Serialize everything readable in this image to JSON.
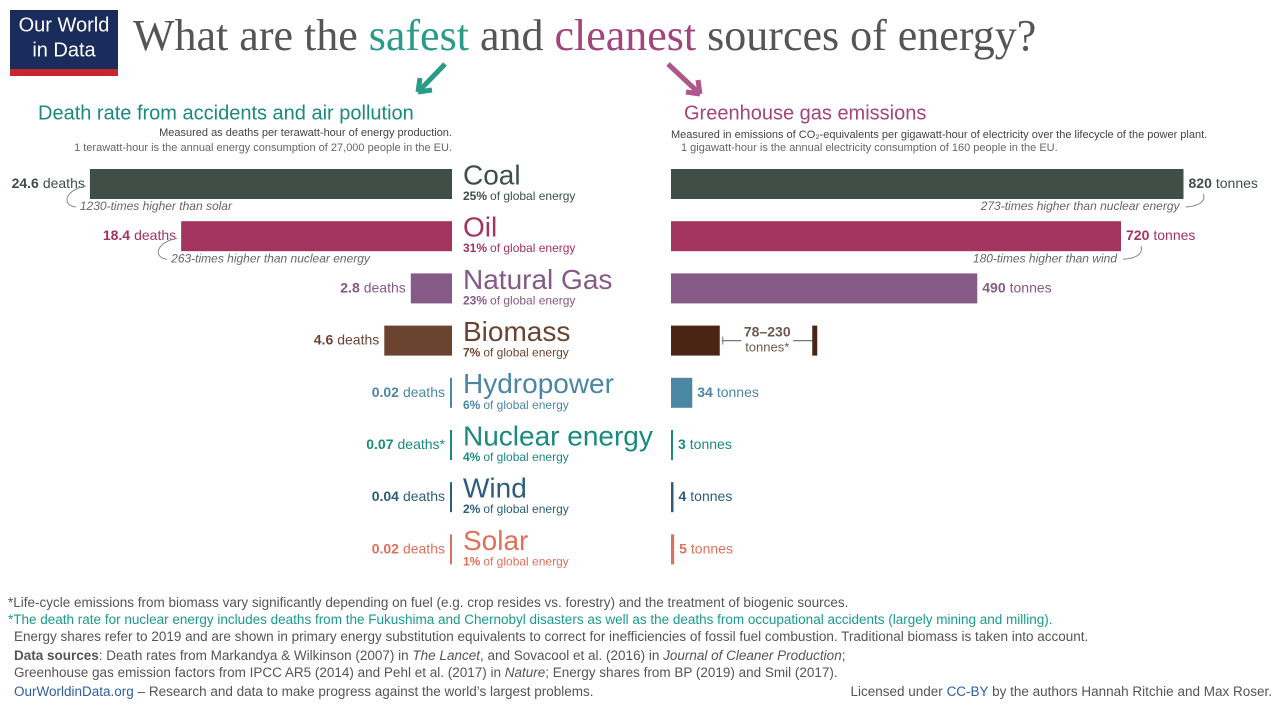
{
  "logo": [
    "Our World",
    "in Data"
  ],
  "title": [
    "What are the ",
    "safest",
    " and ",
    "cleanest",
    " sources of energy?"
  ],
  "energy_share": {
    "labels": [
      "25%",
      "31%",
      "23%",
      "7%",
      "6%",
      "4%",
      "2%",
      "1%"
    ],
    "text": "of global energy"
  },
  "chart_data": [
    {
      "type": "bar",
      "orientation": "horizontal",
      "direction": "left",
      "title": "Death rate from accidents and air pollution",
      "subtitle": "Measured as deaths per terawatt-hour of energy production.",
      "note": "1 terawatt-hour is the annual energy consumption of 27,000 people in the EU.",
      "categories": [
        "Coal",
        "Oil",
        "Natural Gas",
        "Biomass",
        "Hydropower",
        "Nuclear energy",
        "Wind",
        "Solar"
      ],
      "values": [
        24.6,
        18.4,
        2.8,
        4.6,
        0.02,
        0.07,
        0.04,
        0.02
      ],
      "unit": "deaths",
      "colors": [
        "#3f4f48",
        "#a3345f",
        "#865a86",
        "#6b4431",
        "#4b87a3",
        "#1a8a7e",
        "#2d5d7b",
        "#e06f5c"
      ],
      "xlim": [
        0,
        25
      ],
      "annotations": [
        {
          "index": 0,
          "text": "1230-times higher than solar"
        },
        {
          "index": 1,
          "text": "263-times higher than nuclear energy"
        }
      ],
      "footnote": {
        "index": 5,
        "mark": "*"
      }
    },
    {
      "type": "bar",
      "orientation": "horizontal",
      "direction": "right",
      "title": "Greenhouse gas emissions",
      "subtitle": "Measured in emissions of CO₂-equivalents per gigawatt-hour of electricity over the lifecycle of the power plant.",
      "note": "1 gigawatt-hour is the annual electricity consumption of 160 people in the EU.",
      "values": [
        820,
        720,
        490,
        78,
        34,
        3,
        4,
        5
      ],
      "value_labels": [
        "820",
        "720",
        "490",
        "78–230",
        "34",
        "3",
        "4",
        "5"
      ],
      "unit": "tonnes",
      "colors": [
        "#3f4f48",
        "#a3345f",
        "#865a86",
        "#4a2414",
        "#4b87a3",
        "#1a8a7e",
        "#2d5d7b",
        "#e06f5c"
      ],
      "xlim": [
        0,
        1000
      ],
      "range_high": {
        "index": 3,
        "value": 230
      },
      "annotations": [
        {
          "index": 0,
          "text": "273-times higher than nuclear energy"
        },
        {
          "index": 1,
          "text": "180-times higher than wind"
        }
      ],
      "footnote": {
        "index": 3,
        "mark": "*"
      }
    }
  ],
  "footer": {
    "lines": [
      [
        {
          "text": "*Life-cycle emissions from biomass vary significantly depending on fuel (e.g. crop resides vs. forestry) and the treatment of biogenic sources."
        }
      ],
      [
        {
          "text": "*The death rate for nuclear energy includes deaths from the Fukushima and Chernobyl disasters as well as the deaths from occupational accidents (largely mining and milling).",
          "style": "teal"
        }
      ],
      [
        {
          "text": "Energy shares refer to 2019 and are shown in primary energy substitution equivalents to correct for inefficiencies of fossil fuel combustion. Traditional biomass is taken into account."
        }
      ],
      [
        {
          "text": "Data sources",
          "style": "bold"
        },
        {
          "text": ": Death rates from Markandya & Wilkinson (2007) in "
        },
        {
          "text": "The Lancet",
          "style": "italic"
        },
        {
          "text": ", and Sovacool et al. (2016) in "
        },
        {
          "text": "Journal of Cleaner Production",
          "style": "italic"
        },
        {
          "text": ";"
        }
      ],
      [
        {
          "text": "Greenhouse gas emission factors from IPCC AR5 (2014) and Pehl et al. (2017) in "
        },
        {
          "text": "Nature",
          "style": "italic"
        },
        {
          "text": "; Energy shares from BP (2019) and Smil (2017)."
        }
      ],
      [
        {
          "text": "OurWorldinData.org",
          "style": "link"
        },
        {
          "text": " – Research and data to make progress against the world’s largest problems."
        }
      ]
    ],
    "license": [
      {
        "text": "Licensed under "
      },
      {
        "text": "CC-BY",
        "style": "link"
      },
      {
        "text": " by the authors Hannah Ritchie and Max Roser."
      }
    ]
  }
}
